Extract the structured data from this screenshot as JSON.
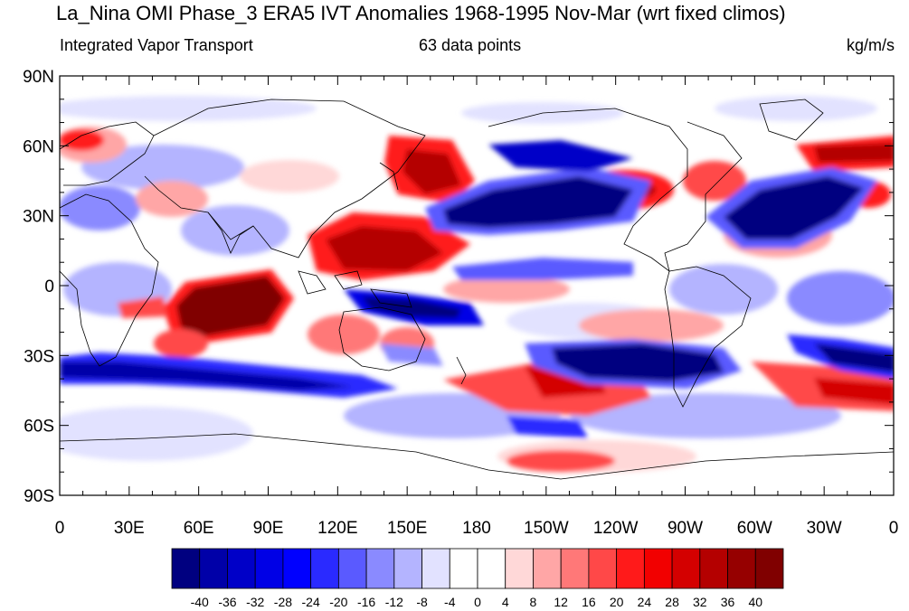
{
  "title": "La_Nina OMI Phase_3 ERA5 IVT Anomalies 1968-1995 Nov-Mar (wrt fixed climos)",
  "subtitle_left": "Integrated Vapor Transport",
  "subtitle_center": "63 data points",
  "subtitle_right": "kg/m/s",
  "map": {
    "lon_range": [
      0,
      360
    ],
    "lat_range": [
      -90,
      90
    ],
    "x_ticks": [
      "0",
      "30E",
      "60E",
      "90E",
      "120E",
      "150E",
      "180",
      "150W",
      "120W",
      "90W",
      "60W",
      "30W",
      "0"
    ],
    "y_ticks": [
      "90N",
      "60N",
      "30N",
      "0",
      "30S",
      "60S",
      "90S"
    ],
    "background": "#ffffff"
  },
  "colorbar": {
    "labels": [
      "-40",
      "-36",
      "-32",
      "-28",
      "-24",
      "-20",
      "-16",
      "-12",
      "-8",
      "-4",
      "0",
      "4",
      "8",
      "12",
      "16",
      "20",
      "24",
      "28",
      "32",
      "36",
      "40"
    ],
    "colors": [
      "#000080",
      "#0000a8",
      "#0000c8",
      "#0000e6",
      "#0000ff",
      "#2a2aff",
      "#5a5aff",
      "#8a8aff",
      "#b4b4ff",
      "#e2e2ff",
      "#ffffff",
      "#ffffff",
      "#ffd8d8",
      "#ffa6a6",
      "#ff7878",
      "#ff4848",
      "#ff1a1a",
      "#f20000",
      "#d40000",
      "#b40000",
      "#960000",
      "#800000"
    ]
  }
}
